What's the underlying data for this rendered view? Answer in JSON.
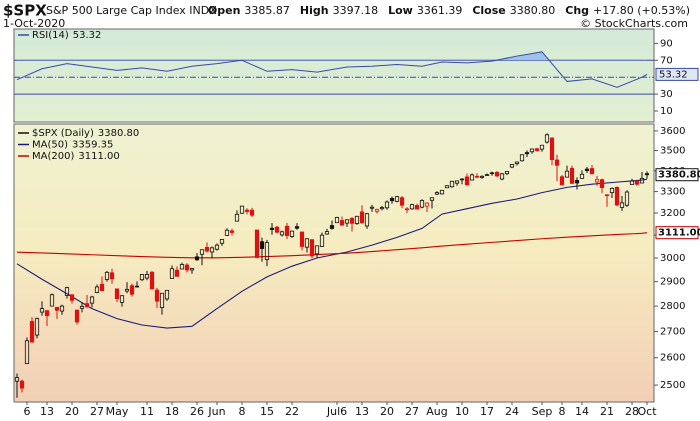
{
  "header": {
    "symbol": "$SPX",
    "name": "S&P 500 Large Cap Index INDX",
    "date": "1-Oct-2020",
    "quote": [
      [
        "Open",
        "3385.87"
      ],
      [
        "High",
        "3397.18"
      ],
      [
        "Low",
        "3361.39"
      ],
      [
        "Close",
        "3380.80"
      ],
      [
        "Chg",
        "+17.80 (+0.53%)"
      ]
    ],
    "copyright": "© StockCharts.com"
  },
  "chart_data": [
    {
      "type": "line",
      "fill_above": 70,
      "levels": [
        70,
        30
      ],
      "dashed_levels": [
        50
      ],
      "ylim": [
        -3,
        107
      ],
      "yticks": [
        90,
        70,
        30,
        10
      ],
      "fill_color": "#9fc3e6",
      "series": [
        {
          "name": "RSI(14)",
          "color": "#3a48a8",
          "last_label": "53.32",
          "x": [
            "Apr 2",
            "Apr 9",
            "Apr 17",
            "Apr 24",
            "May 1",
            "May 8",
            "May 15",
            "May 22",
            "Jun 1",
            "Jun 8",
            "Jun 15",
            "Jun 22",
            "Jun 29",
            "Jul 8",
            "Jul 15",
            "Jul 22",
            "Jul 29",
            "Aug 4",
            "Aug 11",
            "Aug 18",
            "Aug 25",
            "Sep 1",
            "Sep 9",
            "Sep 16",
            "Sep 23",
            "Sep 30",
            "Oct 1"
          ],
          "values": [
            47,
            60,
            66,
            62,
            58,
            61,
            57,
            63,
            66,
            70,
            57,
            59,
            56,
            62,
            63,
            65,
            63,
            68,
            67,
            69,
            75,
            80,
            45,
            48,
            38,
            50,
            53.32
          ]
        }
      ]
    },
    {
      "type": "candlestick",
      "name": "$SPX (Daily)",
      "last_label": "3380.80",
      "log": true,
      "up_color": "#111111",
      "down_color": "#e01010",
      "ylim": [
        2440,
        3636
      ],
      "yticks": [
        2500,
        2600,
        2700,
        2800,
        2900,
        3000,
        3100,
        3200,
        3300,
        3400,
        3500,
        3600
      ],
      "x": [
        "Apr 2",
        "Apr 3",
        "Apr 6",
        "Apr 7",
        "Apr 8",
        "Apr 9",
        "Apr 13",
        "Apr 14",
        "Apr 15",
        "Apr 16",
        "Apr 17",
        "Apr 20",
        "Apr 21",
        "Apr 22",
        "Apr 23",
        "Apr 24",
        "Apr 27",
        "Apr 28",
        "Apr 29",
        "Apr 30",
        "May 1",
        "May 4",
        "May 5",
        "May 6",
        "May 7",
        "May 8",
        "May 11",
        "May 12",
        "May 13",
        "May 14",
        "May 15",
        "May 18",
        "May 19",
        "May 20",
        "May 21",
        "May 22",
        "May 26",
        "May 27",
        "May 28",
        "May 29",
        "Jun 1",
        "Jun 2",
        "Jun 3",
        "Jun 4",
        "Jun 5",
        "Jun 8",
        "Jun 9",
        "Jun 10",
        "Jun 11",
        "Jun 12",
        "Jun 15",
        "Jun 16",
        "Jun 17",
        "Jun 18",
        "Jun 19",
        "Jun 22",
        "Jun 23",
        "Jun 24",
        "Jun 25",
        "Jun 26",
        "Jun 29",
        "Jun 30",
        "Jul 1",
        "Jul 2",
        "Jul 6",
        "Jul 7",
        "Jul 8",
        "Jul 9",
        "Jul 10",
        "Jul 13",
        "Jul 14",
        "Jul 15",
        "Jul 16",
        "Jul 17",
        "Jul 20",
        "Jul 21",
        "Jul 22",
        "Jul 23",
        "Jul 24",
        "Jul 27",
        "Jul 28",
        "Jul 29",
        "Jul 30",
        "Jul 31",
        "Aug 3",
        "Aug 4",
        "Aug 5",
        "Aug 6",
        "Aug 7",
        "Aug 10",
        "Aug 11",
        "Aug 12",
        "Aug 13",
        "Aug 14",
        "Aug 17",
        "Aug 18",
        "Aug 19",
        "Aug 20",
        "Aug 21",
        "Aug 24",
        "Aug 25",
        "Aug 26",
        "Aug 27",
        "Aug 28",
        "Aug 31",
        "Sep 1",
        "Sep 2",
        "Sep 3",
        "Sep 4",
        "Sep 8",
        "Sep 9",
        "Sep 10",
        "Sep 11",
        "Sep 14",
        "Sep 15",
        "Sep 16",
        "Sep 17",
        "Sep 18",
        "Sep 21",
        "Sep 22",
        "Sep 23",
        "Sep 24",
        "Sep 25",
        "Sep 28",
        "Sep 29",
        "Sep 30",
        "Oct 1"
      ],
      "open": [
        2514,
        2514,
        2578,
        2739,
        2686,
        2776,
        2782,
        2800,
        2795,
        2780,
        2843,
        2846,
        2784,
        2791,
        2810,
        2812,
        2855,
        2889,
        2909,
        2937,
        2870,
        2815,
        2861,
        2883,
        2878,
        2908,
        2915,
        2939,
        2865,
        2794,
        2829,
        2913,
        2948,
        2953,
        2970,
        2949,
        3005,
        3016,
        3046,
        3026,
        3038,
        3064,
        3099,
        3119,
        3163,
        3199,
        3213,
        3213,
        3123,
        3071,
        2993,
        3131,
        3136,
        3101,
        3140,
        3094,
        3138,
        3114,
        3047,
        3080,
        3018,
        3050,
        3105,
        3143,
        3156,
        3166,
        3154,
        3176,
        3152,
        3205,
        3141,
        3222,
        3208,
        3220,
        3224,
        3268,
        3254,
        3271,
        3219,
        3219,
        3235,
        3227,
        3232,
        3259,
        3288,
        3289,
        3318,
        3323,
        3340,
        3356,
        3370,
        3355,
        3370,
        3368,
        3378,
        3387,
        3392,
        3360,
        3386,
        3418,
        3435,
        3449,
        3490,
        3494,
        3509,
        3507,
        3543,
        3564,
        3453,
        3371,
        3369,
        3412,
        3353,
        3363,
        3408,
        3411,
        3346,
        3357,
        3285,
        3295,
        3320,
        3226,
        3236,
        3334,
        3350,
        3341,
        3385.87
      ],
      "high": [
        2542,
        2520,
        2677,
        2756,
        2754,
        2819,
        2782,
        2851,
        2795,
        2806,
        2879,
        2846,
        2785,
        2815,
        2845,
        2842,
        2888,
        2922,
        2945,
        2954,
        2870,
        2844,
        2898,
        2891,
        2901,
        2932,
        2945,
        2945,
        2874,
        2853,
        2865,
        2968,
        2964,
        2980,
        2978,
        2957,
        3021,
        3036,
        3068,
        3050,
        3063,
        3082,
        3131,
        3129,
        3212,
        3233,
        3222,
        3224,
        3123,
        3089,
        3079,
        3154,
        3141,
        3120,
        3155,
        3120,
        3154,
        3115,
        3086,
        3081,
        3054,
        3112,
        3128,
        3166,
        3183,
        3184,
        3172,
        3180,
        3187,
        3236,
        3200,
        3238,
        3220,
        3233,
        3258,
        3277,
        3280,
        3279,
        3227,
        3242,
        3243,
        3264,
        3250,
        3272,
        3302,
        3306,
        3330,
        3351,
        3352,
        3364,
        3387,
        3387,
        3388,
        3378,
        3387,
        3396,
        3399,
        3390,
        3399,
        3432,
        3444,
        3481,
        3501,
        3510,
        3514,
        3528,
        3588,
        3564,
        3479,
        3380,
        3425,
        3425,
        3368,
        3402,
        3419,
        3428,
        3375,
        3362,
        3285,
        3320,
        3324,
        3279,
        3306,
        3361,
        3357,
        3394,
        3397.18
      ],
      "low": [
        2455,
        2474,
        2578,
        2657,
        2673,
        2762,
        2721,
        2800,
        2749,
        2765,
        2830,
        2810,
        2727,
        2775,
        2792,
        2795,
        2852,
        2861,
        2900,
        2891,
        2816,
        2798,
        2852,
        2839,
        2876,
        2902,
        2906,
        2869,
        2793,
        2766,
        2821,
        2913,
        2922,
        2953,
        2938,
        2933,
        2988,
        2969,
        3023,
        2999,
        3032,
        3052,
        3097,
        3098,
        3163,
        3196,
        3194,
        3181,
        2999,
        2984,
        2965,
        3102,
        3108,
        3094,
        3083,
        3088,
        3124,
        3033,
        3024,
        2999,
        3000,
        3048,
        3102,
        3124,
        3155,
        3142,
        3137,
        3116,
        3146,
        3153,
        3128,
        3205,
        3198,
        3212,
        3215,
        3243,
        3250,
        3222,
        3200,
        3215,
        3216,
        3222,
        3205,
        3221,
        3284,
        3286,
        3317,
        3318,
        3328,
        3335,
        3326,
        3355,
        3364,
        3361,
        3379,
        3376,
        3369,
        3354,
        3379,
        3413,
        3425,
        3445,
        3468,
        3484,
        3494,
        3494,
        3535,
        3427,
        3349,
        3329,
        3369,
        3338,
        3310,
        3363,
        3389,
        3384,
        3328,
        3293,
        3229,
        3270,
        3232,
        3210,
        3228,
        3334,
        3328,
        3341,
        3361.39
      ],
      "close": [
        2527,
        2489,
        2664,
        2659,
        2750,
        2790,
        2762,
        2846,
        2783,
        2800,
        2875,
        2823,
        2737,
        2799,
        2798,
        2837,
        2878,
        2863,
        2939,
        2912,
        2830,
        2842,
        2868,
        2848,
        2881,
        2930,
        2930,
        2870,
        2820,
        2852,
        2864,
        2954,
        2922,
        2972,
        2949,
        2955,
        2992,
        3036,
        3030,
        3044,
        3056,
        3081,
        3122,
        3112,
        3194,
        3232,
        3207,
        3190,
        3002,
        3041,
        3067,
        3125,
        3113,
        3115,
        3098,
        3118,
        3131,
        3050,
        3084,
        3009,
        3053,
        3100,
        3116,
        3130,
        3180,
        3145,
        3169,
        3153,
        3185,
        3155,
        3197,
        3227,
        3216,
        3225,
        3251,
        3257,
        3276,
        3236,
        3216,
        3239,
        3218,
        3258,
        3246,
        3271,
        3295,
        3306,
        3328,
        3349,
        3351,
        3360,
        3333,
        3380,
        3373,
        3373,
        3381,
        3390,
        3375,
        3385,
        3397,
        3431,
        3443,
        3479,
        3484,
        3508,
        3500,
        3527,
        3580,
        3455,
        3427,
        3332,
        3398,
        3339,
        3341,
        3383,
        3401,
        3385,
        3357,
        3319,
        3281,
        3315,
        3237,
        3247,
        3298,
        3351,
        3335,
        3363,
        3380.8
      ],
      "xticks": [
        {
          "value": "Apr 6",
          "label": "6"
        },
        {
          "value": "Apr 13",
          "label": "13"
        },
        {
          "value": "Apr 20",
          "label": "20"
        },
        {
          "value": "Apr 27",
          "label": "27"
        },
        {
          "value": "May 1",
          "label": "May"
        },
        {
          "value": "May 11",
          "label": "11"
        },
        {
          "value": "May 18",
          "label": "18"
        },
        {
          "value": "May 26",
          "label": "26"
        },
        {
          "value": "Jun 1",
          "label": "Jun"
        },
        {
          "value": "Jun 8",
          "label": "8"
        },
        {
          "value": "Jun 15",
          "label": "15"
        },
        {
          "value": "Jun 22",
          "label": "22"
        },
        {
          "value": "Jul 6",
          "label": "Jul6"
        },
        {
          "value": "Jul 13",
          "label": "13"
        },
        {
          "value": "Jul 20",
          "label": "20"
        },
        {
          "value": "Jul 27",
          "label": "27"
        },
        {
          "value": "Aug 3",
          "label": "Aug"
        },
        {
          "value": "Aug 10",
          "label": "10"
        },
        {
          "value": "Aug 17",
          "label": "17"
        },
        {
          "value": "Aug 24",
          "label": "24"
        },
        {
          "value": "Sep 1",
          "label": "Sep"
        },
        {
          "value": "Sep 8",
          "label": "8"
        },
        {
          "value": "Sep 14",
          "label": "14"
        },
        {
          "value": "Sep 21",
          "label": "21"
        },
        {
          "value": "Sep 28",
          "label": "28"
        },
        {
          "value": "Oct 1",
          "label": "Oct"
        }
      ],
      "series": [
        {
          "name": "MA(50)",
          "color": "#1c1c7a",
          "last_label": "3359.35",
          "x": [
            "Apr 2",
            "Apr 9",
            "Apr 17",
            "Apr 24",
            "May 1",
            "May 8",
            "May 15",
            "May 22",
            "Jun 1",
            "Jun 8",
            "Jun 15",
            "Jun 22",
            "Jun 29",
            "Jul 8",
            "Jul 15",
            "Jul 22",
            "Jul 29",
            "Aug 4",
            "Aug 11",
            "Aug 18",
            "Aug 25",
            "Sep 1",
            "Sep 9",
            "Sep 16",
            "Sep 23",
            "Sep 30",
            "Oct 1"
          ],
          "values": [
            2975,
            2910,
            2850,
            2790,
            2750,
            2725,
            2713,
            2720,
            2790,
            2860,
            2920,
            2965,
            3000,
            3026,
            3056,
            3090,
            3130,
            3195,
            3220,
            3245,
            3265,
            3295,
            3320,
            3335,
            3345,
            3355,
            3359.35
          ]
        },
        {
          "name": "MA(200)",
          "color": "#c80000",
          "last_label": "3111.00",
          "x": [
            "Apr 2",
            "Apr 9",
            "Apr 17",
            "Apr 24",
            "May 1",
            "May 8",
            "May 15",
            "May 22",
            "Jun 1",
            "Jun 8",
            "Jun 15",
            "Jun 22",
            "Jun 29",
            "Jul 8",
            "Jul 15",
            "Jul 22",
            "Jul 29",
            "Aug 4",
            "Aug 11",
            "Aug 18",
            "Aug 25",
            "Sep 1",
            "Sep 9",
            "Sep 16",
            "Sep 23",
            "Sep 30",
            "Oct 1"
          ],
          "values": [
            3025,
            3022,
            3018,
            3014,
            3010,
            3006,
            3003,
            3001,
            3001,
            3003,
            3006,
            3010,
            3015,
            3021,
            3028,
            3036,
            3044,
            3052,
            3060,
            3068,
            3076,
            3084,
            3091,
            3097,
            3103,
            3108,
            3111
          ]
        }
      ]
    }
  ]
}
